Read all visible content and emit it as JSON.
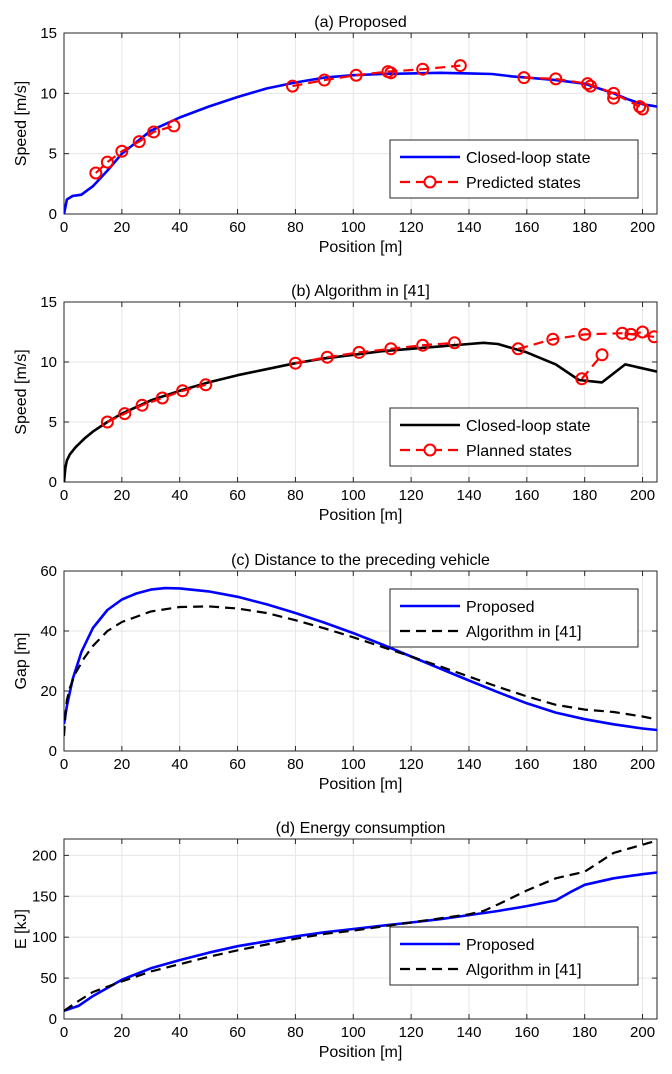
{
  "chart_data": [
    {
      "type": "line",
      "title": "(a) Proposed",
      "xlabel": "Position [m]",
      "ylabel": "Speed [m/s]",
      "xlim": [
        0,
        205
      ],
      "ylim": [
        0,
        15
      ],
      "xticks": [
        0,
        20,
        40,
        60,
        80,
        100,
        120,
        140,
        160,
        180,
        200
      ],
      "yticks": [
        0,
        5,
        10,
        15
      ],
      "grid": true,
      "legend_position": "bottom-right",
      "series": [
        {
          "name": "Closed-loop state",
          "color": "#0000ff",
          "style": "solid",
          "x": [
            0,
            1,
            3,
            6,
            10,
            15,
            20,
            30,
            40,
            50,
            60,
            70,
            80,
            90,
            100,
            110,
            120,
            130,
            140,
            148,
            155,
            160,
            170,
            180,
            185,
            190,
            195,
            200,
            205
          ],
          "y": [
            0,
            1.2,
            1.5,
            1.6,
            2.3,
            3.6,
            5.0,
            6.9,
            8.0,
            8.9,
            9.7,
            10.4,
            10.9,
            11.3,
            11.5,
            11.6,
            11.65,
            11.7,
            11.65,
            11.6,
            11.4,
            11.3,
            11.1,
            10.8,
            10.4,
            10.0,
            9.5,
            9.1,
            8.9
          ]
        },
        {
          "name": "Predicted states",
          "color": "#ff0000",
          "style": "dash-circle",
          "segments": [
            {
              "x": [
                11,
                15,
                20,
                26,
                31,
                38
              ],
              "y": [
                3.4,
                4.3,
                5.2,
                6.0,
                6.8,
                7.3
              ]
            },
            {
              "x": [
                79,
                90,
                101,
                112,
                124,
                137
              ],
              "y": [
                10.6,
                11.1,
                11.5,
                11.8,
                12.0,
                12.3
              ]
            },
            {
              "x": [
                159,
                170,
                181,
                190,
                199
              ],
              "y": [
                11.3,
                11.2,
                10.8,
                10.0,
                8.9
              ]
            }
          ],
          "extra_markers": {
            "x": [
              113,
              182,
              190,
              200
            ],
            "y": [
              11.7,
              10.6,
              9.6,
              8.7
            ]
          }
        }
      ]
    },
    {
      "type": "line",
      "title": "(b) Algorithm in [41]",
      "xlabel": "Position [m]",
      "ylabel": "Speed [m/s]",
      "xlim": [
        0,
        205
      ],
      "ylim": [
        0,
        15
      ],
      "xticks": [
        0,
        20,
        40,
        60,
        80,
        100,
        120,
        140,
        160,
        180,
        200
      ],
      "yticks": [
        0,
        5,
        10,
        15
      ],
      "grid": true,
      "legend_position": "bottom-right",
      "series": [
        {
          "name": "Closed-loop state",
          "color": "#000000",
          "style": "solid",
          "x": [
            0,
            0.5,
            1,
            2,
            4,
            7,
            10,
            15,
            20,
            30,
            40,
            50,
            60,
            70,
            80,
            90,
            100,
            110,
            120,
            130,
            140,
            145,
            150,
            160,
            170,
            178,
            186,
            194,
            205
          ],
          "y": [
            0,
            1.2,
            1.8,
            2.3,
            2.9,
            3.6,
            4.2,
            5.0,
            5.7,
            6.8,
            7.6,
            8.3,
            8.9,
            9.4,
            9.9,
            10.3,
            10.6,
            10.9,
            11.1,
            11.3,
            11.5,
            11.6,
            11.5,
            10.8,
            9.8,
            8.5,
            8.3,
            9.8,
            9.2
          ]
        },
        {
          "name": "Planned states",
          "color": "#ff0000",
          "style": "dash-circle",
          "segments": [
            {
              "x": [
                15,
                21,
                27,
                34,
                41,
                49
              ],
              "y": [
                5.0,
                5.7,
                6.4,
                7.0,
                7.6,
                8.1
              ]
            },
            {
              "x": [
                80,
                91,
                102,
                113,
                124,
                135
              ],
              "y": [
                9.9,
                10.4,
                10.8,
                11.1,
                11.4,
                11.6
              ]
            },
            {
              "x": [
                157,
                169,
                180,
                193,
                204
              ],
              "y": [
                11.1,
                11.9,
                12.3,
                12.4,
                12.1
              ]
            },
            {
              "x": [
                179,
                186
              ],
              "y": [
                8.6,
                10.6
              ]
            },
            {
              "x": [
                196,
                200
              ],
              "y": [
                12.3,
                12.5
              ]
            }
          ]
        }
      ]
    },
    {
      "type": "line",
      "title": "(c) Distance to the preceding vehicle",
      "xlabel": "Position [m]",
      "ylabel": "Gap [m]",
      "xlim": [
        0,
        205
      ],
      "ylim": [
        0,
        60
      ],
      "xticks": [
        0,
        20,
        40,
        60,
        80,
        100,
        120,
        140,
        160,
        180,
        200
      ],
      "yticks": [
        0,
        20,
        40,
        60
      ],
      "grid": true,
      "legend_position": "top-right",
      "series": [
        {
          "name": "Proposed",
          "color": "#0000ff",
          "style": "solid",
          "x": [
            0,
            1,
            3,
            6,
            10,
            15,
            20,
            25,
            30,
            35,
            40,
            50,
            60,
            70,
            80,
            90,
            100,
            110,
            120,
            130,
            140,
            150,
            160,
            170,
            180,
            190,
            200,
            205
          ],
          "y": [
            9,
            15,
            24,
            33,
            41,
            47,
            50.5,
            52.5,
            53.8,
            54.3,
            54.2,
            53.2,
            51.4,
            48.9,
            46,
            42.8,
            39.3,
            35.5,
            31.5,
            27.5,
            23.5,
            19.6,
            15.9,
            12.8,
            10.6,
            8.9,
            7.5,
            7
          ]
        },
        {
          "name": "Algorithm in [41]",
          "color": "#000000",
          "style": "dashed",
          "x": [
            0,
            0.5,
            1,
            2,
            4,
            7,
            10,
            15,
            20,
            30,
            40,
            50,
            60,
            70,
            80,
            90,
            100,
            110,
            120,
            130,
            140,
            150,
            160,
            170,
            180,
            190,
            200,
            205
          ],
          "y": [
            5,
            12,
            17,
            21,
            26,
            31,
            35,
            40,
            43,
            46.5,
            48,
            48.2,
            47.5,
            46,
            43.6,
            40.9,
            37.9,
            34.7,
            31.5,
            28.2,
            24.8,
            21.4,
            18.2,
            15.4,
            13.8,
            13,
            11.5,
            10.5
          ]
        }
      ]
    },
    {
      "type": "line",
      "title": "(d) Energy consumption",
      "xlabel": "Position [m]",
      "ylabel": "E [kJ]",
      "xlim": [
        0,
        205
      ],
      "ylim": [
        0,
        220
      ],
      "xticks": [
        0,
        20,
        40,
        60,
        80,
        100,
        120,
        140,
        160,
        180,
        200
      ],
      "yticks": [
        0,
        50,
        100,
        150,
        200
      ],
      "grid": true,
      "legend_position": "bottom-right",
      "series": [
        {
          "name": "Proposed",
          "color": "#0000ff",
          "style": "solid",
          "x": [
            0,
            5,
            10,
            20,
            30,
            40,
            50,
            60,
            70,
            80,
            90,
            100,
            110,
            120,
            130,
            140,
            150,
            160,
            170,
            175,
            180,
            190,
            200,
            205
          ],
          "y": [
            10,
            16,
            28,
            48,
            62,
            72,
            81,
            89,
            95,
            101,
            106,
            110,
            114,
            118,
            122,
            127,
            132,
            138,
            145,
            155,
            164,
            172,
            177,
            179
          ]
        },
        {
          "name": "Algorithm in [41]",
          "color": "#000000",
          "style": "dashed",
          "x": [
            0,
            5,
            10,
            20,
            30,
            40,
            50,
            60,
            70,
            80,
            90,
            100,
            110,
            120,
            130,
            140,
            145,
            150,
            160,
            170,
            180,
            190,
            200,
            205
          ],
          "y": [
            10,
            22,
            33,
            46,
            58,
            67,
            76,
            84,
            91,
            98,
            104,
            108,
            113,
            118,
            123,
            128,
            132,
            140,
            157,
            172,
            180,
            203,
            213,
            218
          ]
        }
      ]
    }
  ]
}
